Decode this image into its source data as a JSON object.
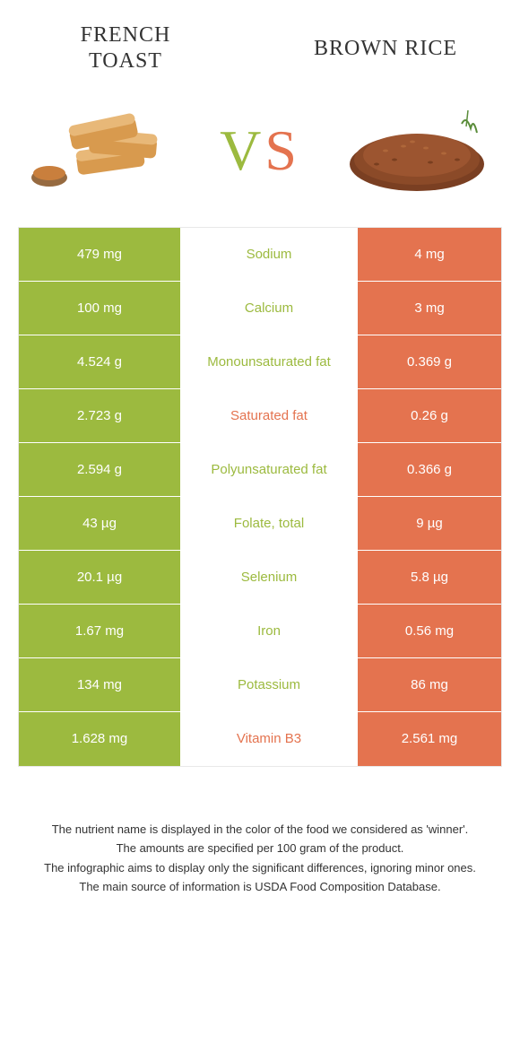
{
  "colors": {
    "green": "#9cba3f",
    "orange": "#e4734f",
    "vs_v": "#9cba3f",
    "vs_s": "#e4734f",
    "row_border": "#ffffff",
    "background": "#ffffff",
    "text": "#333333"
  },
  "header": {
    "left_title": "French Toast",
    "right_title": "Brown Rice"
  },
  "vs": {
    "v": "V",
    "s": "S"
  },
  "table": {
    "type": "comparison-table",
    "rows": [
      {
        "left": "479 mg",
        "label": "Sodium",
        "right": "4 mg",
        "winner": "left"
      },
      {
        "left": "100 mg",
        "label": "Calcium",
        "right": "3 mg",
        "winner": "left"
      },
      {
        "left": "4.524 g",
        "label": "Monounsaturated fat",
        "right": "0.369 g",
        "winner": "left"
      },
      {
        "left": "2.723 g",
        "label": "Saturated fat",
        "right": "0.26 g",
        "winner": "right"
      },
      {
        "left": "2.594 g",
        "label": "Polyunsaturated fat",
        "right": "0.366 g",
        "winner": "left"
      },
      {
        "left": "43 µg",
        "label": "Folate, total",
        "right": "9 µg",
        "winner": "left"
      },
      {
        "left": "20.1 µg",
        "label": "Selenium",
        "right": "5.8 µg",
        "winner": "left"
      },
      {
        "left": "1.67 mg",
        "label": "Iron",
        "right": "0.56 mg",
        "winner": "left"
      },
      {
        "left": "134 mg",
        "label": "Potassium",
        "right": "86 mg",
        "winner": "left"
      },
      {
        "left": "1.628 mg",
        "label": "Vitamin B3",
        "right": "2.561 mg",
        "winner": "right"
      }
    ]
  },
  "footer": {
    "line1": "The nutrient name is displayed in the color of the food we considered as 'winner'.",
    "line2": "The amounts are specified per 100 gram of the product.",
    "line3": "The infographic aims to display only the significant differences, ignoring minor ones.",
    "line4": "The main source of information is USDA Food Composition Database."
  }
}
